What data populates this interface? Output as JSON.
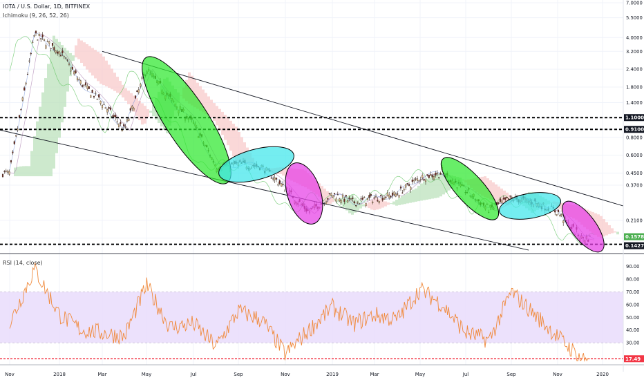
{
  "header": {
    "title": "IOTA / U.S. Dollar, 1D, BITFINEX",
    "indicator_main": "Ichimoku (9, 26, 52, 26)",
    "indicator_sub": "RSI (14, close)"
  },
  "colors": {
    "up": "#26a69a",
    "down": "#ef5350",
    "candle_body_up": "#d9b98a",
    "candle_body_down": "#6e2b22",
    "cloud_bull": "#b8dfb8",
    "cloud_bear": "#f8c8c8",
    "rsi_line": "#f08a3c",
    "rsi_band": "#e9dcfc",
    "green_ellipse": "#2ee82e",
    "cyan_ellipse": "#3fe6ea",
    "magenta_ellipse": "#e63fe6",
    "last_price_badge": "#4caf50",
    "level_badge": "#131722",
    "rsi_badge": "#f23645"
  },
  "chart_data": [
    {
      "type": "candlestick",
      "title": "IOTA / U.S. Dollar, 1D, BITFINEX",
      "scale": "log",
      "y_ticks": [
        "7.0000",
        "5.5000",
        "4.0000",
        "3.2000",
        "2.4000",
        "1.8000",
        "1.4000",
        "1.1000",
        "0.9100",
        "0.8000",
        "0.6000",
        "0.4500",
        "0.3700",
        "0.2100",
        "0.1578",
        "0.1427"
      ],
      "y_tick_values": [
        7.0,
        5.5,
        4.0,
        3.2,
        2.4,
        1.8,
        1.4,
        1.1,
        0.91,
        0.8,
        0.6,
        0.45,
        0.37,
        0.21,
        0.1578,
        0.1427
      ],
      "x_ticks": [
        "Nov",
        "2018",
        "Mar",
        "May",
        "Jul",
        "Sep",
        "Nov",
        "2019",
        "Mar",
        "May",
        "Jul",
        "Sep",
        "Nov",
        "2020"
      ],
      "last_price": "0.1578",
      "horizontal_levels": [
        {
          "label": "1.1000",
          "value": 1.1
        },
        {
          "label": "0.9100",
          "value": 0.91
        },
        {
          "label": "0.1427",
          "value": 0.1427
        }
      ],
      "price_path": [
        {
          "x": "Nov 2017",
          "y": 0.45
        },
        {
          "x": "Dec 2017",
          "y": 4.2
        },
        {
          "x": "Jan 2018",
          "y": 3.2
        },
        {
          "x": "Feb 2018",
          "y": 1.9
        },
        {
          "x": "Mar 2018",
          "y": 1.4
        },
        {
          "x": "Apr 2018",
          "y": 0.9
        },
        {
          "x": "May 2018",
          "y": 2.4
        },
        {
          "x": "Jun 2018",
          "y": 1.5
        },
        {
          "x": "Jul 2018",
          "y": 1.0
        },
        {
          "x": "Aug 2018",
          "y": 0.5
        },
        {
          "x": "Sep 2018",
          "y": 0.52
        },
        {
          "x": "Oct 2018",
          "y": 0.5
        },
        {
          "x": "Nov 2018",
          "y": 0.35
        },
        {
          "x": "Dec 2018",
          "y": 0.24
        },
        {
          "x": "Jan 2019",
          "y": 0.32
        },
        {
          "x": "Feb 2019",
          "y": 0.28
        },
        {
          "x": "Mar 2019",
          "y": 0.3
        },
        {
          "x": "Apr 2019",
          "y": 0.32
        },
        {
          "x": "May 2019",
          "y": 0.42
        },
        {
          "x": "Jun 2019",
          "y": 0.45
        },
        {
          "x": "Jul 2019",
          "y": 0.34
        },
        {
          "x": "Aug 2019",
          "y": 0.25
        },
        {
          "x": "Sep 2019",
          "y": 0.3
        },
        {
          "x": "Oct 2019",
          "y": 0.28
        },
        {
          "x": "Nov 2019",
          "y": 0.24
        },
        {
          "x": "Dec 2019",
          "y": 0.1578
        }
      ]
    },
    {
      "type": "line",
      "title": "RSI (14, close)",
      "y_ticks": [
        "90.00",
        "80.00",
        "70.00",
        "60.00",
        "50.00",
        "40.00",
        "30.00",
        "17.49"
      ],
      "y_tick_values": [
        90,
        80,
        70,
        60,
        50,
        40,
        30,
        17.49
      ],
      "ylim": [
        15,
        95
      ],
      "band": [
        30,
        70
      ],
      "last_value": "17.49",
      "series": [
        {
          "values": [
            {
              "x": "Nov 2017",
              "y": 45
            },
            {
              "x": "Dec 2017",
              "y": 88
            },
            {
              "x": "Jan 2018",
              "y": 52
            },
            {
              "x": "Feb 2018",
              "y": 40
            },
            {
              "x": "Mar 2018",
              "y": 38
            },
            {
              "x": "Apr 2018",
              "y": 35
            },
            {
              "x": "May 2018",
              "y": 75
            },
            {
              "x": "Jun 2018",
              "y": 42
            },
            {
              "x": "Jul 2018",
              "y": 45
            },
            {
              "x": "Aug 2018",
              "y": 27
            },
            {
              "x": "Sep 2018",
              "y": 55
            },
            {
              "x": "Oct 2018",
              "y": 48
            },
            {
              "x": "Nov 2018",
              "y": 21
            },
            {
              "x": "Dec 2018",
              "y": 40
            },
            {
              "x": "Jan 2019",
              "y": 58
            },
            {
              "x": "Feb 2019",
              "y": 45
            },
            {
              "x": "Mar 2019",
              "y": 52
            },
            {
              "x": "Apr 2019",
              "y": 48
            },
            {
              "x": "May 2019",
              "y": 72
            },
            {
              "x": "Jun 2019",
              "y": 60
            },
            {
              "x": "Jul 2019",
              "y": 38
            },
            {
              "x": "Aug 2019",
              "y": 32
            },
            {
              "x": "Sep 2019",
              "y": 70
            },
            {
              "x": "Oct 2019",
              "y": 52
            },
            {
              "x": "Nov 2019",
              "y": 35
            },
            {
              "x": "Dec 2019",
              "y": 17.49
            }
          ]
        }
      ]
    }
  ]
}
